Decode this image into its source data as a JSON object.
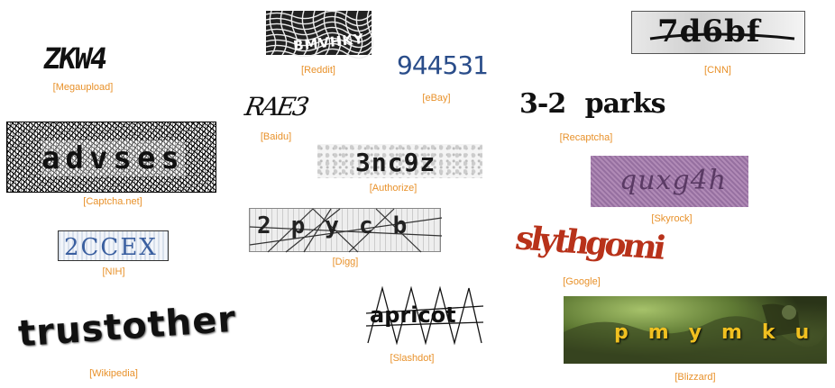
{
  "captions": {
    "megaupload": "[Megaupload]",
    "reddit": "[Reddit]",
    "cnn": "[CNN]",
    "ebay": "[eBay]",
    "baidu": "[Baidu]",
    "recaptcha": "[Recaptcha]",
    "captcha_net": "[Captcha.net]",
    "authorize": "[Authorize]",
    "skyrock": "[Skyrock]",
    "digg": "[Digg]",
    "nih": "[NIH]",
    "google": "[Google]",
    "wikipedia": "[Wikipedia]",
    "slashdot": "[Slashdot]",
    "blizzard": "[Blizzard]"
  },
  "captcha_text": {
    "megaupload": "ZKW4",
    "reddit": "BMVHKY",
    "cnn": "7d6bf",
    "ebay": "944531",
    "baidu": "RAE3",
    "recaptcha": "3-2 parks",
    "captcha_net": "advses",
    "authorize": "3nc9z",
    "skyrock": "quxg4h",
    "digg": "2pycb",
    "nih": "2CCEX",
    "google": "slythgomi",
    "wikipedia": "trustother",
    "slashdot": "apricot",
    "blizzard": "pmymku"
  },
  "colors": {
    "caption": "#e8912a",
    "ebay_text": "#2a4d8a",
    "nih_text": "#3a5fa0",
    "google_text": "#b8321a",
    "blizzard_text": "#f0c020",
    "skyrock_bg": "#a07aa8"
  }
}
